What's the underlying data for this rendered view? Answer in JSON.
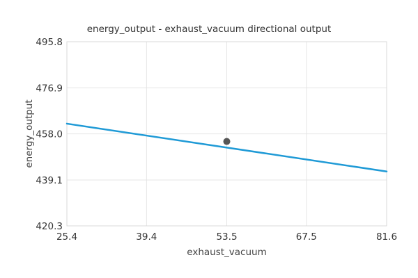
{
  "chart_data": {
    "type": "line",
    "title": "energy_output - exhaust_vacuum directional output",
    "xlabel": "exhaust_vacuum",
    "ylabel": "energy_output",
    "xlim": [
      25.4,
      81.6
    ],
    "ylim": [
      420.3,
      495.8
    ],
    "x_ticks": [
      {
        "value": 25.4,
        "label": "25.4"
      },
      {
        "value": 39.4,
        "label": "39.4"
      },
      {
        "value": 53.5,
        "label": "53.5"
      },
      {
        "value": 67.5,
        "label": "67.5"
      },
      {
        "value": 81.6,
        "label": "81.6"
      }
    ],
    "y_ticks": [
      {
        "value": 420.3,
        "label": "420.3"
      },
      {
        "value": 439.1,
        "label": "439.1"
      },
      {
        "value": 458.0,
        "label": "458.0"
      },
      {
        "value": 476.9,
        "label": "476.9"
      },
      {
        "value": 495.8,
        "label": "495.8"
      }
    ],
    "grid": true,
    "series": [
      {
        "x": [
          25.4,
          81.6
        ],
        "y": [
          462.2,
          442.6
        ],
        "color": "#1f9ad6"
      }
    ],
    "marker": {
      "x": 53.5,
      "y": 454.9,
      "color": "#555555"
    }
  }
}
